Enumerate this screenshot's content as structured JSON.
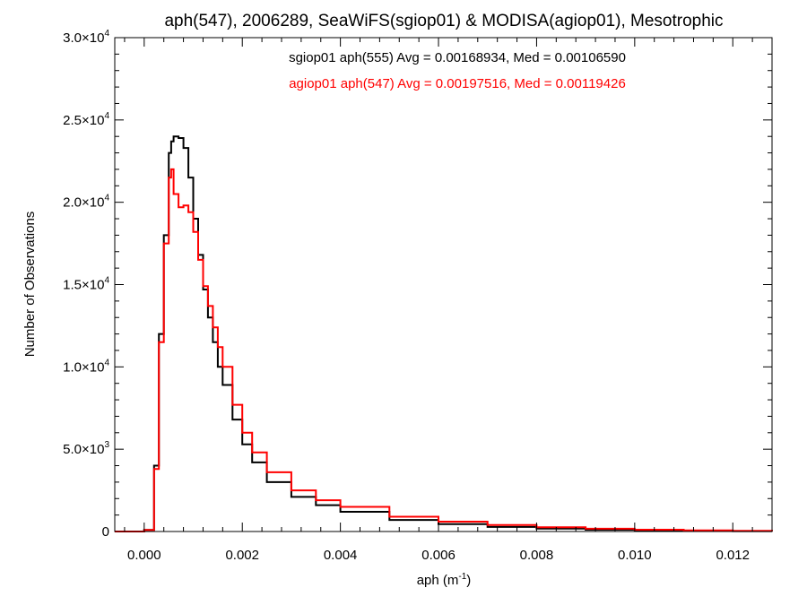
{
  "chart_data": {
    "type": "step-histogram",
    "title": "aph(547), 2006289, SeaWiFS(sgiop01) & MODISA(agiop01), Mesotrophic",
    "xlabel": {
      "base": "aph (m",
      "sup": "-1",
      "end": ")"
    },
    "ylabel": "Number of Observations",
    "xlim": [
      -0.0006,
      0.0128
    ],
    "ylim": [
      0,
      30000
    ],
    "x_ticks": [
      0.0,
      0.002,
      0.004,
      0.006,
      0.008,
      0.01,
      0.012
    ],
    "x_tick_labels": [
      "0.000",
      "0.002",
      "0.004",
      "0.006",
      "0.008",
      "0.010",
      "0.012"
    ],
    "y_ticks": [
      0,
      5000,
      10000,
      15000,
      20000,
      25000,
      30000
    ],
    "y_tick_labels": [
      {
        "base": "0",
        "exp": ""
      },
      {
        "base": "5.0×10",
        "exp": "3"
      },
      {
        "base": "1.0×10",
        "exp": "4"
      },
      {
        "base": "1.5×10",
        "exp": "4"
      },
      {
        "base": "2.0×10",
        "exp": "4"
      },
      {
        "base": "2.5×10",
        "exp": "4"
      },
      {
        "base": "3.0×10",
        "exp": "4"
      }
    ],
    "grid": false,
    "series": [
      {
        "name": "sgiop01 aph(555) Avg = 0.00168934, Med = 0.00106590",
        "color": "#000000",
        "x": [
          -0.0006,
          -0.0002,
          0.0,
          0.0002,
          0.0003,
          0.0004,
          0.0005,
          0.00055,
          0.0006,
          0.0007,
          0.0008,
          0.0009,
          0.001,
          0.0011,
          0.0012,
          0.0013,
          0.0014,
          0.0015,
          0.0016,
          0.0018,
          0.002,
          0.0022,
          0.0025,
          0.003,
          0.0035,
          0.004,
          0.005,
          0.006,
          0.007,
          0.008,
          0.009,
          0.01,
          0.011,
          0.012,
          0.0128
        ],
        "y": [
          0,
          0,
          100,
          4000,
          12000,
          18000,
          23000,
          23700,
          24000,
          23900,
          23300,
          21500,
          19000,
          16800,
          14700,
          13000,
          11500,
          10000,
          8900,
          6800,
          5300,
          4200,
          3000,
          2100,
          1600,
          1200,
          700,
          450,
          280,
          180,
          110,
          70,
          40,
          20,
          10
        ]
      },
      {
        "name": "agiop01 aph(547) Avg = 0.00197516, Med = 0.00119426",
        "color": "#ff0000",
        "x": [
          -0.0006,
          -0.0002,
          0.0,
          0.0002,
          0.0003,
          0.0004,
          0.0005,
          0.00055,
          0.0006,
          0.0007,
          0.0008,
          0.0009,
          0.001,
          0.0011,
          0.0012,
          0.0013,
          0.0014,
          0.0015,
          0.0016,
          0.0018,
          0.002,
          0.0022,
          0.0025,
          0.003,
          0.0035,
          0.004,
          0.005,
          0.006,
          0.007,
          0.008,
          0.009,
          0.01,
          0.011,
          0.012,
          0.0128
        ],
        "y": [
          0,
          0,
          100,
          3800,
          11500,
          17500,
          21500,
          22000,
          20500,
          19700,
          19800,
          19400,
          18200,
          16500,
          14900,
          13700,
          12400,
          11200,
          10000,
          7700,
          6000,
          4800,
          3600,
          2500,
          1900,
          1500,
          900,
          600,
          400,
          260,
          170,
          110,
          70,
          40,
          20
        ]
      }
    ]
  }
}
